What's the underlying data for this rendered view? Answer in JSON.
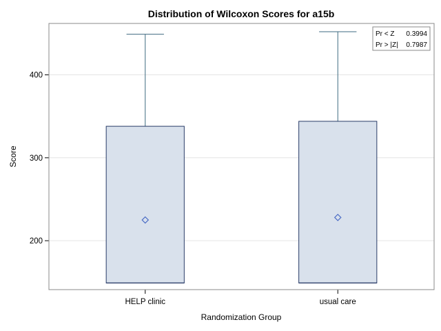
{
  "chart_data": {
    "type": "box",
    "title": "Distribution of Wilcoxon Scores for a15b",
    "xlabel": "Randomization Group",
    "ylabel": "Score",
    "categories": [
      "HELP clinic",
      "usual care"
    ],
    "boxes": [
      {
        "category": "HELP clinic",
        "min": 149,
        "q1": 149,
        "median": 149,
        "q3": 338,
        "max": 449,
        "mean": 225
      },
      {
        "category": "usual care",
        "min": 149,
        "q1": 149,
        "median": 149,
        "q3": 344,
        "max": 452,
        "mean": 228
      }
    ],
    "yticks": [
      200,
      300,
      400
    ],
    "ylim": [
      141,
      462
    ],
    "grid": true,
    "colors": {
      "box_fill": "#d9e1ec",
      "box_stroke": "#273a66",
      "whisker": "#3e6a80",
      "mean_marker": "#4a6bc5",
      "gridline": "#e4e4e4",
      "frame": "#8a8a8a"
    },
    "inset": {
      "position": "top-right",
      "rows": [
        {
          "label": "Pr < Z",
          "value": "0.3994"
        },
        {
          "label": "Pr > |Z|",
          "value": "0.7987"
        }
      ]
    }
  }
}
